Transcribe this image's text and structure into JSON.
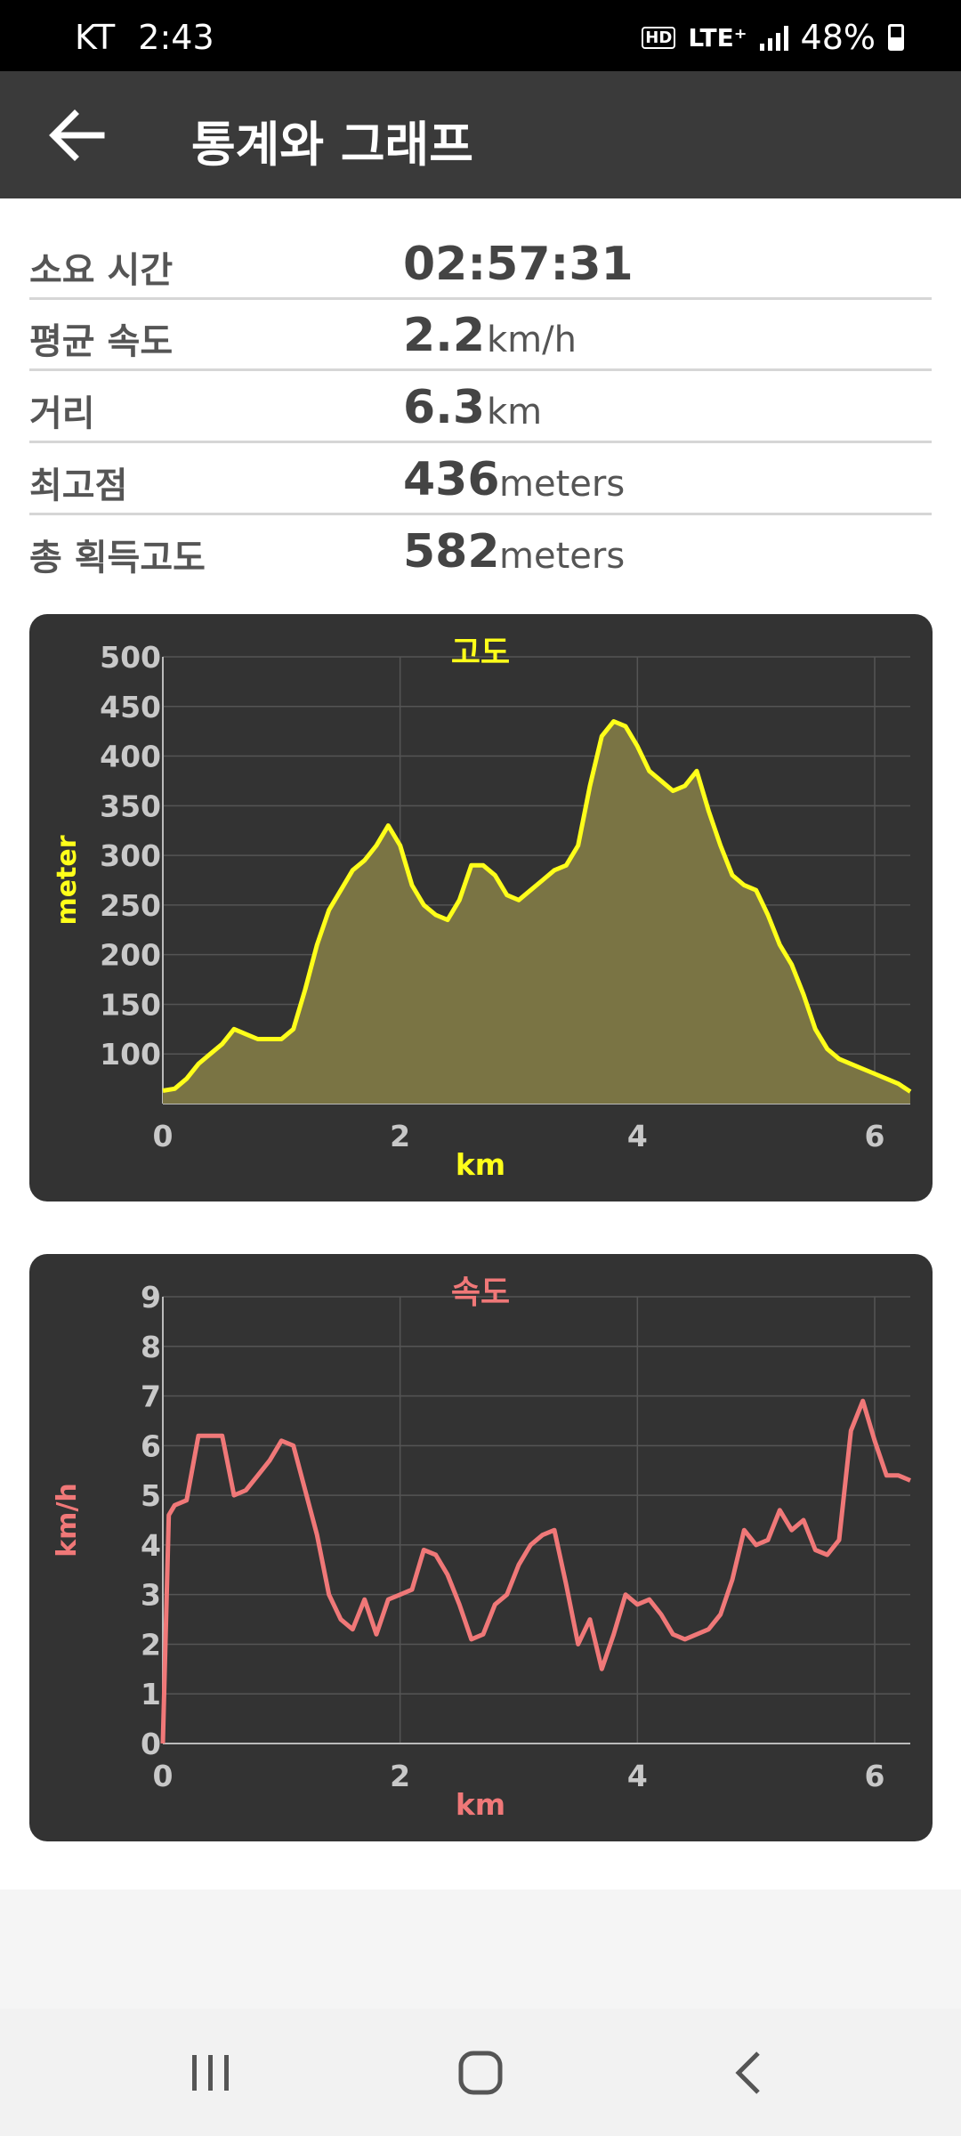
{
  "status_bar": {
    "carrier": "KT",
    "time": "2:43",
    "hd": "HD",
    "network": "LTE⁺",
    "battery": "48%"
  },
  "app_bar": {
    "title": "통계와 그래프",
    "back_icon": "arrow-left-icon"
  },
  "stats": [
    {
      "label": "소요 시간",
      "value": "02:57:31",
      "unit": ""
    },
    {
      "label": "평균 속도",
      "value": "2.2",
      "unit": "km/h"
    },
    {
      "label": "거리",
      "value": "6.3",
      "unit": "km"
    },
    {
      "label": "최고점",
      "value": "436",
      "unit": "meters"
    },
    {
      "label": "총 획득고도",
      "value": "582",
      "unit": "meters"
    }
  ],
  "colors": {
    "altitude": "#ffff1a",
    "altitude_fill": "#7a7444",
    "speed": "#f07878",
    "card_bg": "#333333"
  },
  "chart_data": [
    {
      "type": "area",
      "title": "고도",
      "xlabel": "km",
      "ylabel": "meter",
      "xlim": [
        0,
        6.3
      ],
      "ylim": [
        50,
        500
      ],
      "xticks": [
        0,
        2,
        4,
        6
      ],
      "yticks": [
        100,
        150,
        200,
        250,
        300,
        350,
        400,
        450,
        500
      ],
      "x": [
        0,
        0.1,
        0.2,
        0.3,
        0.4,
        0.5,
        0.6,
        0.7,
        0.8,
        0.9,
        1.0,
        1.1,
        1.2,
        1.3,
        1.4,
        1.5,
        1.6,
        1.7,
        1.8,
        1.9,
        2.0,
        2.1,
        2.2,
        2.3,
        2.4,
        2.5,
        2.6,
        2.7,
        2.8,
        2.9,
        3.0,
        3.1,
        3.2,
        3.3,
        3.4,
        3.5,
        3.6,
        3.7,
        3.8,
        3.9,
        4.0,
        4.1,
        4.2,
        4.3,
        4.4,
        4.5,
        4.6,
        4.7,
        4.8,
        4.9,
        5.0,
        5.1,
        5.2,
        5.3,
        5.4,
        5.5,
        5.6,
        5.7,
        5.8,
        5.9,
        6.0,
        6.1,
        6.2,
        6.3
      ],
      "values": [
        63,
        65,
        75,
        90,
        100,
        110,
        125,
        120,
        115,
        115,
        115,
        125,
        165,
        210,
        245,
        265,
        285,
        295,
        310,
        330,
        310,
        270,
        250,
        240,
        235,
        255,
        290,
        290,
        280,
        260,
        255,
        265,
        275,
        285,
        290,
        310,
        370,
        420,
        435,
        430,
        410,
        385,
        375,
        365,
        370,
        385,
        345,
        310,
        280,
        270,
        265,
        240,
        210,
        190,
        160,
        125,
        105,
        95,
        90,
        85,
        80,
        75,
        70,
        62
      ],
      "grid": true
    },
    {
      "type": "line",
      "title": "속도",
      "xlabel": "km",
      "ylabel": "km/h",
      "xlim": [
        0,
        6.3
      ],
      "ylim": [
        0,
        9
      ],
      "xticks": [
        0,
        2,
        4,
        6
      ],
      "yticks": [
        0,
        1,
        2,
        3,
        4,
        5,
        6,
        7,
        8,
        9
      ],
      "x": [
        0,
        0.05,
        0.1,
        0.2,
        0.3,
        0.4,
        0.5,
        0.6,
        0.7,
        0.8,
        0.9,
        1.0,
        1.1,
        1.2,
        1.3,
        1.4,
        1.5,
        1.6,
        1.7,
        1.8,
        1.9,
        2.0,
        2.1,
        2.2,
        2.3,
        2.4,
        2.5,
        2.6,
        2.7,
        2.8,
        2.9,
        3.0,
        3.1,
        3.2,
        3.3,
        3.4,
        3.5,
        3.6,
        3.7,
        3.8,
        3.9,
        4.0,
        4.1,
        4.2,
        4.3,
        4.4,
        4.5,
        4.6,
        4.7,
        4.8,
        4.9,
        5.0,
        5.1,
        5.2,
        5.3,
        5.4,
        5.5,
        5.6,
        5.7,
        5.8,
        5.9,
        6.0,
        6.1,
        6.2,
        6.3
      ],
      "values": [
        0,
        4.6,
        4.8,
        4.9,
        6.2,
        6.2,
        6.2,
        5.0,
        5.1,
        5.4,
        5.7,
        6.1,
        6.0,
        5.1,
        4.2,
        3.0,
        2.5,
        2.3,
        2.9,
        2.2,
        2.9,
        3.0,
        3.1,
        3.9,
        3.8,
        3.4,
        2.8,
        2.1,
        2.2,
        2.8,
        3.0,
        3.6,
        4.0,
        4.2,
        4.3,
        3.2,
        2.0,
        2.5,
        1.5,
        2.2,
        3.0,
        2.8,
        2.9,
        2.6,
        2.2,
        2.1,
        2.2,
        2.3,
        2.6,
        3.3,
        4.3,
        4.0,
        4.1,
        4.7,
        4.3,
        4.5,
        3.9,
        3.8,
        4.1,
        6.3,
        6.9,
        6.1,
        5.4,
        5.4,
        5.3
      ],
      "grid": true
    }
  ],
  "nav_bar": {
    "recents_icon": "recents-icon",
    "home_icon": "home-icon",
    "back_icon": "nav-back-icon"
  }
}
